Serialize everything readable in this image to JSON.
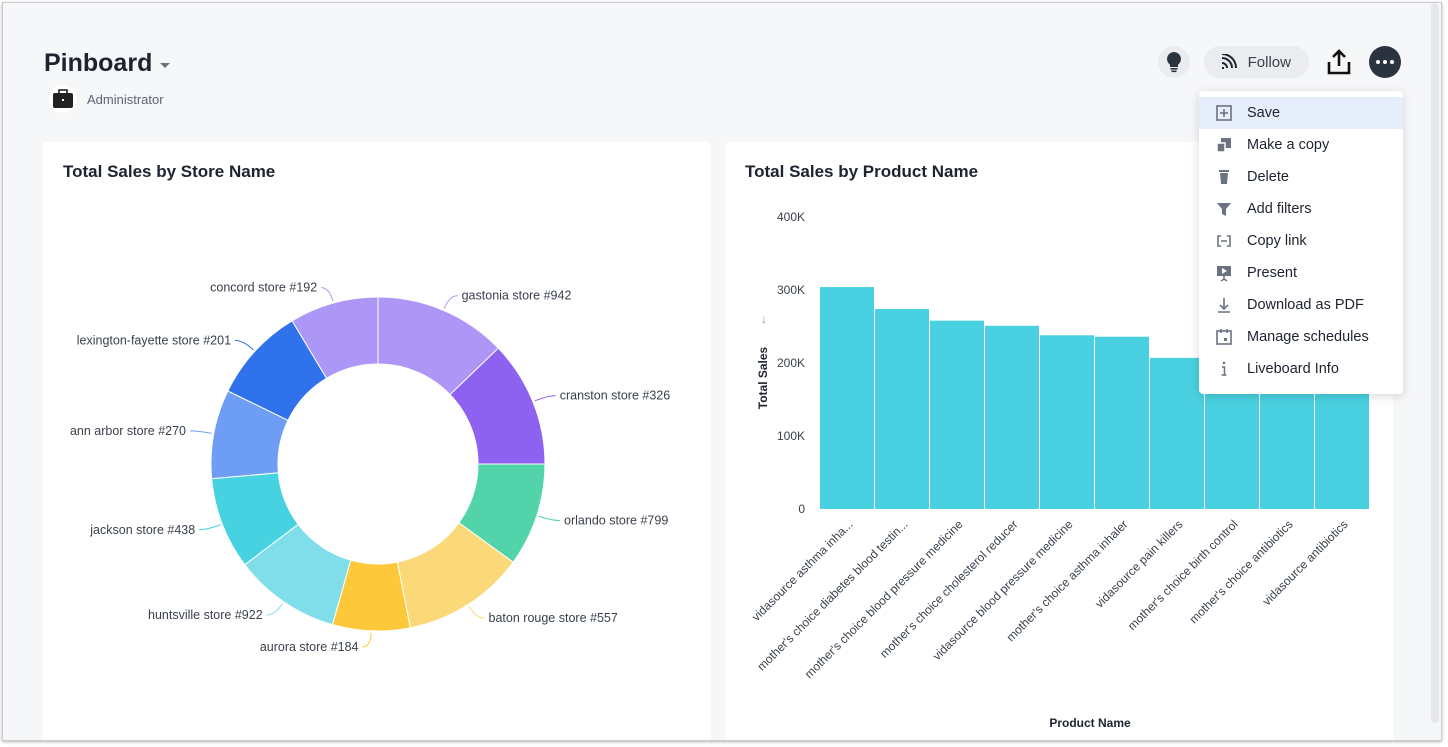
{
  "header": {
    "title": "Pinboard",
    "owner": "Administrator",
    "follow_label": "Follow",
    "icons": [
      "lightbulb-icon",
      "rss-icon",
      "share-icon",
      "more-icon",
      "briefcase-icon"
    ]
  },
  "menu": {
    "items": [
      {
        "label": "Save",
        "icon": "plus-square-icon",
        "active": true
      },
      {
        "label": "Make a copy",
        "icon": "copy-icon"
      },
      {
        "label": "Delete",
        "icon": "trash-icon"
      },
      {
        "label": "Add filters",
        "icon": "filter-icon"
      },
      {
        "label": "Copy link",
        "icon": "link-icon"
      },
      {
        "label": "Present",
        "icon": "present-icon"
      },
      {
        "label": "Download as PDF",
        "icon": "download-icon"
      },
      {
        "label": "Manage schedules",
        "icon": "calendar-icon"
      },
      {
        "label": "Liveboard Info",
        "icon": "info-icon"
      }
    ]
  },
  "chart_data": [
    {
      "type": "pie",
      "title": "Total Sales by Store Name",
      "donut": true,
      "categories": [
        "gastonia store #942",
        "cranston store #326",
        "orlando store #799",
        "baton rouge store #557",
        "aurora store #184",
        "huntsville store #922",
        "jackson store #438",
        "ann arbor store #270",
        "lexington-fayette store #201",
        "concord store #192"
      ],
      "shares_percent": [
        12.8,
        12.2,
        10.0,
        11.9,
        7.5,
        10.3,
        8.9,
        8.6,
        9.2,
        8.6
      ],
      "colors": [
        "#ae96f7",
        "#8e62f0",
        "#52d3a9",
        "#fcd978",
        "#fdc93a",
        "#7fdeea",
        "#47d2e2",
        "#6d9df4",
        "#2f72ec",
        "#ad97f6"
      ]
    },
    {
      "type": "bar",
      "title": "Total Sales by Product Name",
      "xlabel": "Product Name",
      "ylabel": "Total Sales",
      "categories": [
        "vidasource asthma inha...",
        "mother's choice diabetes blood testin...",
        "mother's choice blood pressure medicine",
        "mother's choice cholesterol reducer",
        "vidasource blood pressure medicine",
        "mother's choice asthma inhaler",
        "vidasource pain killers",
        "mother's choice birth control",
        "mother's choice antibiotics",
        "vidasource antibiotics"
      ],
      "values": [
        304000,
        274000,
        258000,
        251000,
        238000,
        236000,
        207000,
        205000,
        200000,
        195000
      ],
      "ylim": [
        0,
        400000
      ],
      "yticks": [
        "0",
        "100K",
        "200K",
        "300K",
        "400K"
      ],
      "sort": "descending",
      "color": "#49d1e1"
    }
  ]
}
